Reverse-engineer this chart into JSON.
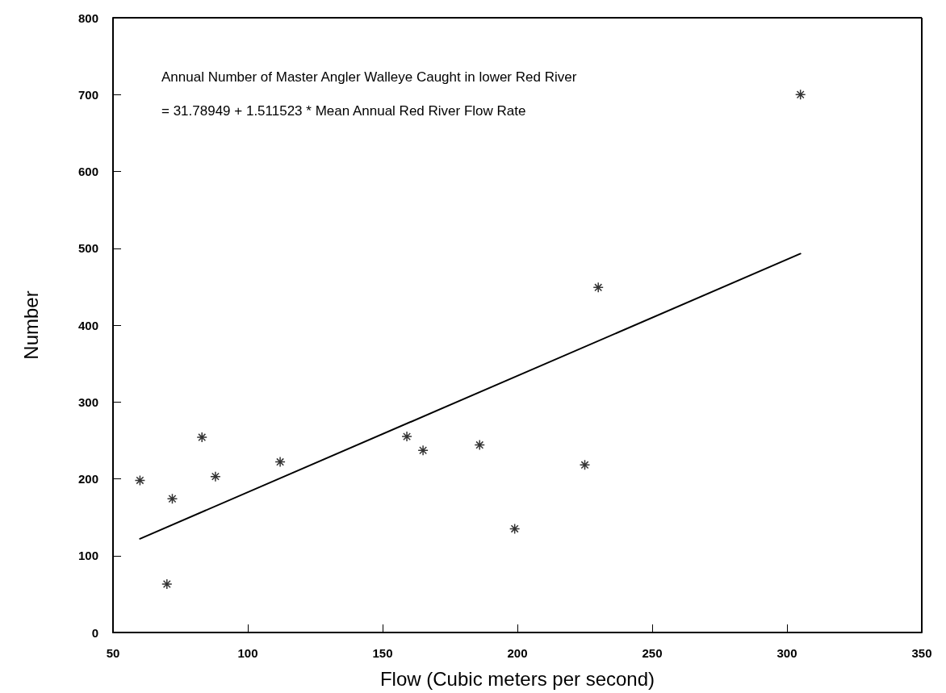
{
  "chart_data": {
    "type": "scatter",
    "xlabel": "Flow (Cubic meters per second)",
    "ylabel": "Number",
    "annotations": [
      "Annual Number of Master Angler Walleye Caught in lower Red River",
      "= 31.78949 + 1.511523 * Mean Annual Red River Flow Rate"
    ],
    "series": [
      {
        "color": "#000000",
        "marker": "cross",
        "x": [
          60,
          70,
          72,
          83,
          88,
          112,
          159,
          165,
          186,
          199,
          225,
          230,
          305
        ],
        "values": [
          198,
          63,
          174,
          254,
          203,
          222,
          255,
          237,
          244,
          135,
          218,
          449,
          700
        ]
      },
      {
        "type": "line",
        "color": "#000000",
        "marker": "none",
        "line_style": "solid",
        "x": [
          60,
          305
        ],
        "values": [
          122,
          493
        ]
      }
    ],
    "xlim": [
      50,
      350
    ],
    "xticks": [
      50,
      100,
      150,
      200,
      250,
      300,
      350
    ],
    "ylim": [
      0,
      800
    ],
    "yticks": [
      0,
      100,
      200,
      300,
      400,
      500,
      600,
      700,
      800
    ],
    "grid": false
  }
}
